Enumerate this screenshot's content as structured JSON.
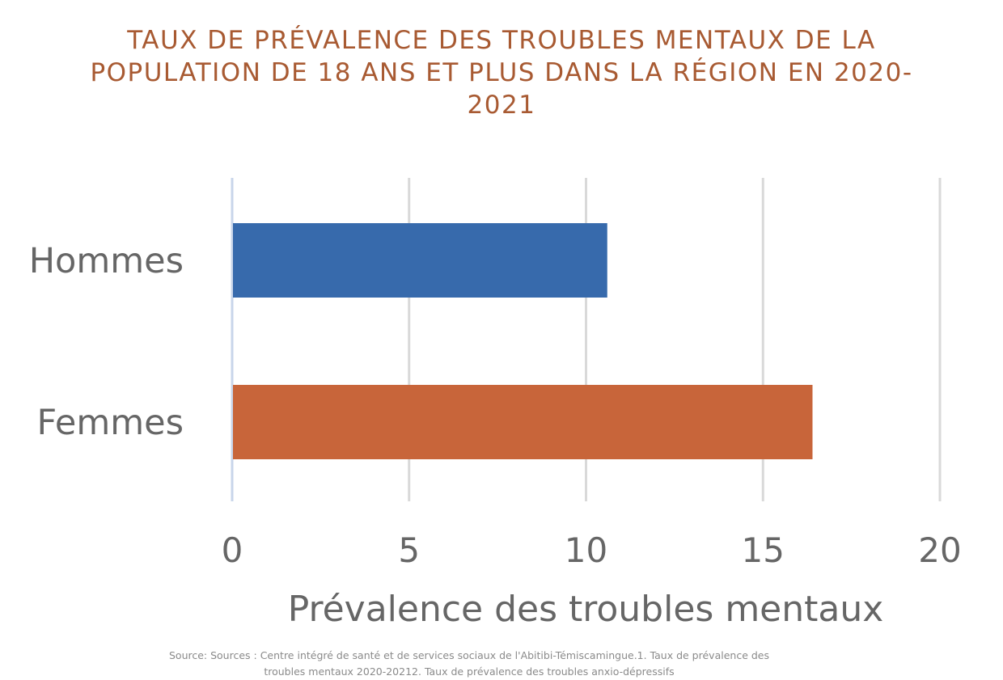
{
  "chart_data": {
    "type": "bar",
    "orientation": "horizontal",
    "title": "TAUX DE PRÉVALENCE DES TROUBLES MENTAUX DE LA POPULATION DE 18 ANS ET PLUS DANS LA RÉGION EN 2020-2021",
    "xlabel": "Prévalence des troubles mentaux",
    "ylabel": "",
    "categories": [
      "Hommes",
      "Femmes"
    ],
    "values": [
      10.6,
      16.4
    ],
    "bar_colors": [
      "#376AAC",
      "#C8653A"
    ],
    "xlim": [
      0,
      20
    ],
    "xticks": [
      "0",
      "5",
      "10",
      "15",
      "20"
    ],
    "grid": true,
    "legend": "none",
    "title_color": "#A85A32",
    "source": "Source: Sources : Centre intégré de santé et de services sociaux de l'Abitibi-Témiscamingue.1. Taux de prévalence des troubles mentaux 2020-20212. Taux de prévalence des troubles anxio-dépressifs"
  }
}
